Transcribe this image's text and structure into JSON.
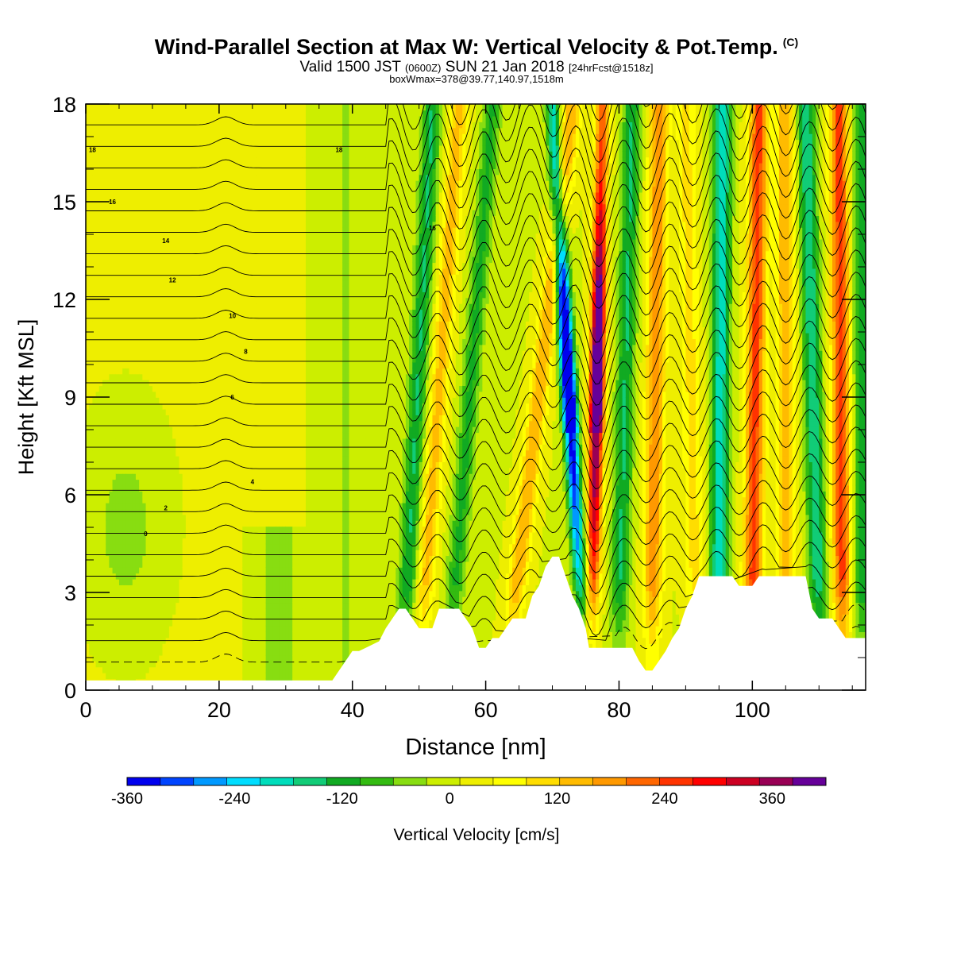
{
  "header": {
    "title": "Wind-Parallel Section at Max W: Vertical Velocity & Pot.Temp.",
    "title_mark": "(C)",
    "subtitle_a": "Valid 1500 JST",
    "subtitle_b": "(0600Z)",
    "subtitle_c": "SUN 21 Jan 2018",
    "subtitle_d": "[24hrFcst@1518z]",
    "info": "boxWmax=378@39.77,140.97,1518m"
  },
  "chart_data": {
    "type": "heatmap",
    "xlabel": "Distance [nm]",
    "ylabel": "Height [Kft MSL]",
    "xlim": [
      0,
      117
    ],
    "ylim": [
      0,
      18
    ],
    "xticks": [
      0,
      20,
      40,
      60,
      80,
      100
    ],
    "yticks": [
      0,
      3,
      6,
      9,
      12,
      15,
      18
    ],
    "colorbar": {
      "label": "Vertical Velocity [cm/s]",
      "levels": [
        -360,
        -330,
        -300,
        -270,
        -240,
        -210,
        -180,
        -150,
        -120,
        -90,
        -60,
        -30,
        0,
        30,
        60,
        90,
        120,
        150,
        180,
        210,
        240,
        270,
        300,
        330,
        360,
        390,
        420
      ],
      "tick_labels": [
        "-360",
        "-240",
        "-120",
        "0",
        "120",
        "240",
        "360"
      ],
      "tick_values": [
        -360,
        -240,
        -120,
        0,
        120,
        240,
        360
      ],
      "colors": [
        "#0000ee",
        "#0044ff",
        "#0099ff",
        "#00ddff",
        "#00ddbb",
        "#11cc77",
        "#11aa22",
        "#33bb11",
        "#88dd11",
        "#ccee00",
        "#eeee00",
        "#ffff00",
        "#ffdd00",
        "#ffbb00",
        "#ff9900",
        "#ff6600",
        "#ff3300",
        "#ff0000",
        "#cc0022",
        "#990055",
        "#660099"
      ]
    },
    "terrain_kft": [
      [
        0,
        0.3
      ],
      [
        37,
        0.3
      ],
      [
        38,
        0.6
      ],
      [
        39,
        0.9
      ],
      [
        40,
        1.2
      ],
      [
        41,
        1.2
      ],
      [
        42,
        1.3
      ],
      [
        44,
        1.5
      ],
      [
        45,
        1.9
      ],
      [
        46,
        2.2
      ],
      [
        47,
        2.5
      ],
      [
        48,
        2.5
      ],
      [
        49,
        2.2
      ],
      [
        50,
        1.9
      ],
      [
        52,
        1.9
      ],
      [
        53,
        2.5
      ],
      [
        56,
        2.5
      ],
      [
        57,
        2.2
      ],
      [
        58,
        1.9
      ],
      [
        58.5,
        1.6
      ],
      [
        59,
        1.3
      ],
      [
        60,
        1.3
      ],
      [
        61,
        1.6
      ],
      [
        62,
        1.6
      ],
      [
        63,
        1.9
      ],
      [
        64,
        2.2
      ],
      [
        66,
        2.2
      ],
      [
        67,
        2.9
      ],
      [
        68,
        3.2
      ],
      [
        69,
        3.8
      ],
      [
        70,
        4.1
      ],
      [
        71,
        4.1
      ],
      [
        72,
        3.5
      ],
      [
        73,
        2.9
      ],
      [
        74,
        2.5
      ],
      [
        75,
        1.9
      ],
      [
        75.5,
        1.3
      ],
      [
        82,
        1.3
      ],
      [
        83,
        0.9
      ],
      [
        84,
        0.6
      ],
      [
        85,
        0.6
      ],
      [
        86,
        0.9
      ],
      [
        87,
        1.2
      ],
      [
        88,
        1.6
      ],
      [
        89,
        1.9
      ],
      [
        90,
        2.5
      ],
      [
        91,
        2.9
      ],
      [
        92,
        3.5
      ],
      [
        97,
        3.5
      ],
      [
        98,
        3.2
      ],
      [
        100,
        3.2
      ],
      [
        101,
        3.5
      ],
      [
        108,
        3.5
      ],
      [
        109,
        2.5
      ],
      [
        110,
        2.2
      ],
      [
        112,
        2.2
      ],
      [
        113,
        1.9
      ],
      [
        114,
        1.6
      ],
      [
        117,
        1.6
      ]
    ],
    "w_bands": [
      {
        "x_bottom": 50.5,
        "x_top": 56,
        "peak": 130
      },
      {
        "x_bottom": 48,
        "x_top": 52,
        "peak": -150
      },
      {
        "x_bottom": 55,
        "x_top": 61,
        "peak": -120
      },
      {
        "x_bottom": 64,
        "x_top": 73,
        "peak": 150
      },
      {
        "x_bottom": 74.5,
        "x_top": 70,
        "peak": -360
      },
      {
        "x_bottom": 76,
        "x_top": 77.5,
        "peak": 378
      },
      {
        "x_bottom": 80,
        "x_top": 82,
        "peak": -150
      },
      {
        "x_bottom": 85,
        "x_top": 86,
        "peak": 180
      },
      {
        "x_bottom": 91.5,
        "x_top": 90,
        "peak": 90
      },
      {
        "x_bottom": 95,
        "x_top": 95.5,
        "peak": -210
      },
      {
        "x_bottom": 100,
        "x_top": 101,
        "peak": 240
      },
      {
        "x_bottom": 105,
        "x_top": 105,
        "peak": 150
      },
      {
        "x_bottom": 110,
        "x_top": 108,
        "peak": -180
      },
      {
        "x_bottom": 113.5,
        "x_top": 113,
        "peak": 240
      },
      {
        "x_bottom": 116.5,
        "x_top": 116.5,
        "peak": -150
      }
    ],
    "theta_lines": {
      "count": 28,
      "labels": [
        [
          "0",
          9,
          4.8
        ],
        [
          "2",
          12,
          5.6
        ],
        [
          "4",
          25,
          6.4
        ],
        [
          "6",
          22,
          9.0
        ],
        [
          "8",
          24,
          10.4
        ],
        [
          "10",
          22,
          11.5
        ],
        [
          "12",
          13,
          12.6
        ],
        [
          "14",
          12,
          13.8
        ],
        [
          "16",
          4,
          15.0
        ],
        [
          "16",
          52,
          14.2
        ],
        [
          "18",
          1,
          16.6
        ],
        [
          "18",
          38,
          16.6
        ]
      ]
    }
  }
}
